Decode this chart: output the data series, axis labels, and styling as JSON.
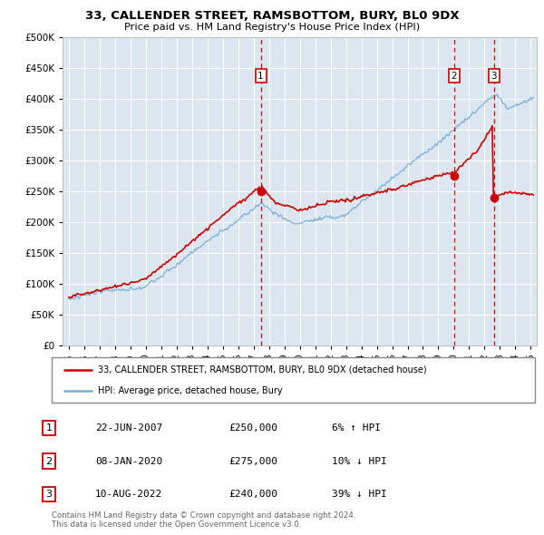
{
  "title": "33, CALLENDER STREET, RAMSBOTTOM, BURY, BL0 9DX",
  "subtitle": "Price paid vs. HM Land Registry's House Price Index (HPI)",
  "background_color": "#dce6f1",
  "ylim": [
    0,
    500000
  ],
  "yticks": [
    0,
    50000,
    100000,
    150000,
    200000,
    250000,
    300000,
    350000,
    400000,
    450000,
    500000
  ],
  "xlim_start": 1994.6,
  "xlim_end": 2025.4,
  "sale_dates": [
    2007.47,
    2020.02,
    2022.6
  ],
  "sale_prices": [
    250000,
    275000,
    240000
  ],
  "sale_labels": [
    "1",
    "2",
    "3"
  ],
  "legend_red": "33, CALLENDER STREET, RAMSBOTTOM, BURY, BL0 9DX (detached house)",
  "legend_blue": "HPI: Average price, detached house, Bury",
  "table_rows": [
    {
      "num": "1",
      "date": "22-JUN-2007",
      "price": "£250,000",
      "change": "6% ↑ HPI"
    },
    {
      "num": "2",
      "date": "08-JAN-2020",
      "price": "£275,000",
      "change": "10% ↓ HPI"
    },
    {
      "num": "3",
      "date": "10-AUG-2022",
      "price": "£240,000",
      "change": "39% ↓ HPI"
    }
  ],
  "footer": "Contains HM Land Registry data © Crown copyright and database right 2024.\nThis data is licensed under the Open Government Licence v3.0.",
  "red_color": "#cc0000",
  "blue_color": "#7aadd4",
  "grid_color": "#ffffff"
}
